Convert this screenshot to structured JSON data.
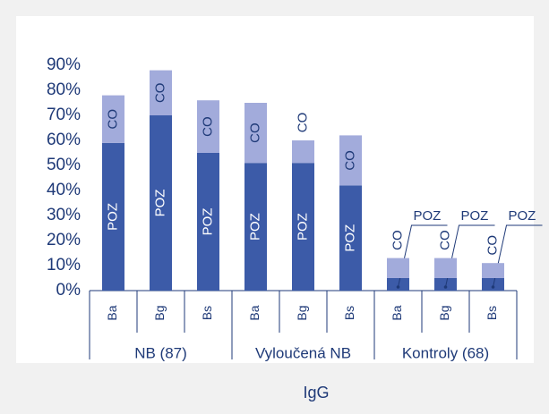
{
  "chart_data": {
    "type": "stacked_bar",
    "categories": [
      "Ba",
      "Bg",
      "Bs",
      "Ba",
      "Bg",
      "Bs",
      "Ba",
      "Bg",
      "Bs"
    ],
    "groups": [
      "NB (87)",
      "Vyloučená NB",
      "Kontroly (68)"
    ],
    "xlabel": "IgG",
    "series": [
      {
        "name": "POZ",
        "color": "#3c5ba8",
        "values": [
          59,
          70,
          55,
          51,
          51,
          42,
          5,
          5,
          5
        ]
      },
      {
        "name": "CO",
        "color": "#a2abdb",
        "values": [
          19,
          18,
          21,
          24,
          9,
          20,
          8,
          8,
          6
        ]
      }
    ],
    "ylim": [
      0,
      90
    ],
    "yticks": [
      {
        "value": 0,
        "label": "0%"
      },
      {
        "value": 10,
        "label": "10%"
      },
      {
        "value": 20,
        "label": "20%"
      },
      {
        "value": 30,
        "label": "30%"
      },
      {
        "value": 40,
        "label": "40%"
      },
      {
        "value": 50,
        "label": "50%"
      },
      {
        "value": 60,
        "label": "60%"
      },
      {
        "value": 70,
        "label": "70%"
      },
      {
        "value": 80,
        "label": "80%"
      },
      {
        "value": 90,
        "label": "90%"
      }
    ]
  }
}
